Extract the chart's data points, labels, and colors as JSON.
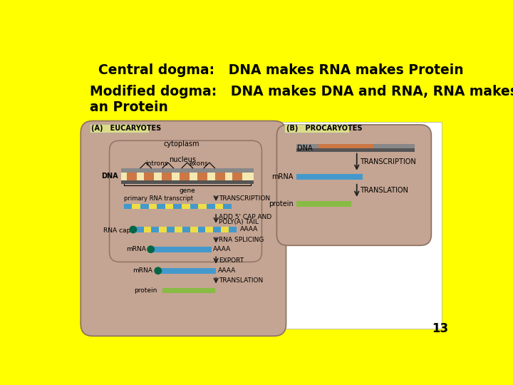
{
  "background_color": "#FFFF00",
  "title_line1": "Central dogma:   DNA makes RNA makes Protein",
  "title_line2": "Modified dogma:   DNA makes DNA and RNA, RNA makes DNA, RNA\nan Protein",
  "title_fontsize": 13.5,
  "page_number": "13",
  "text_color": "#000000",
  "label_A": "(A)   EUCARYOTES",
  "label_B": "(B)   PROCARYOTES",
  "cell_bg": "#C4A492",
  "cell_edge": "#8B7060",
  "dna_grey": "#888888",
  "dna_grey2": "#555555",
  "dna_orange": "#CC7744",
  "dna_cream": "#F5E8B0",
  "rna_blue": "#4499CC",
  "rna_yellow": "#EEDD44",
  "protein_green": "#88BB44",
  "cap_green": "#006644",
  "arrow_color": "#222222",
  "label_bg": "#DDDD88"
}
